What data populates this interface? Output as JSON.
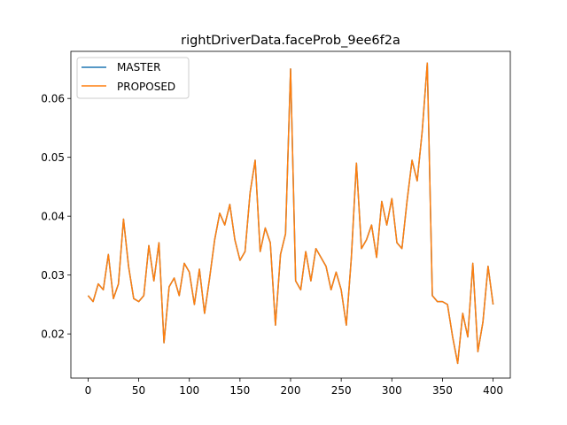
{
  "chart_data": {
    "type": "line",
    "title": "rightDriverData.faceProb_9ee6f2a",
    "xlabel": "",
    "ylabel": "",
    "xlim": [
      -17,
      417
    ],
    "ylim": [
      0.0125,
      0.068
    ],
    "x_ticks": [
      0,
      50,
      100,
      150,
      200,
      250,
      300,
      350,
      400
    ],
    "y_ticks": [
      0.02,
      0.03,
      0.04,
      0.05,
      0.06
    ],
    "x_tick_labels": [
      "0",
      "50",
      "100",
      "150",
      "200",
      "250",
      "300",
      "350",
      "400"
    ],
    "y_tick_labels": [
      "0.02",
      "0.03",
      "0.04",
      "0.05",
      "0.06"
    ],
    "grid": false,
    "legend": {
      "position": "upper left",
      "entries": [
        "MASTER",
        "PROPOSED"
      ]
    },
    "x": [
      0,
      5,
      10,
      15,
      20,
      25,
      30,
      35,
      40,
      45,
      50,
      55,
      60,
      65,
      70,
      75,
      80,
      85,
      90,
      95,
      100,
      105,
      110,
      115,
      120,
      125,
      130,
      135,
      140,
      145,
      150,
      155,
      160,
      165,
      170,
      175,
      180,
      185,
      190,
      195,
      200,
      205,
      210,
      215,
      220,
      225,
      230,
      235,
      240,
      245,
      250,
      255,
      260,
      265,
      270,
      275,
      280,
      285,
      290,
      295,
      300,
      305,
      310,
      315,
      320,
      325,
      330,
      335,
      340,
      345,
      350,
      355,
      360,
      365,
      370,
      375,
      380,
      385,
      390,
      395,
      400
    ],
    "series": [
      {
        "name": "MASTER",
        "color": "#1f77b4",
        "values": [
          0.0265,
          0.0255,
          0.0285,
          0.0275,
          0.0335,
          0.026,
          0.0285,
          0.0395,
          0.0315,
          0.026,
          0.0255,
          0.0265,
          0.035,
          0.029,
          0.0355,
          0.0185,
          0.028,
          0.0295,
          0.0265,
          0.032,
          0.0305,
          0.025,
          0.031,
          0.0235,
          0.0295,
          0.036,
          0.0405,
          0.0385,
          0.042,
          0.036,
          0.0325,
          0.034,
          0.044,
          0.0495,
          0.034,
          0.038,
          0.0355,
          0.0215,
          0.0335,
          0.037,
          0.065,
          0.029,
          0.0275,
          0.034,
          0.029,
          0.0345,
          0.033,
          0.0315,
          0.0275,
          0.0305,
          0.0275,
          0.0215,
          0.033,
          0.049,
          0.0345,
          0.036,
          0.0385,
          0.033,
          0.0425,
          0.0385,
          0.043,
          0.0355,
          0.0345,
          0.0425,
          0.0495,
          0.046,
          0.0545,
          0.066,
          0.0265,
          0.0255,
          0.0255,
          0.025,
          0.0195,
          0.015,
          0.0235,
          0.0195,
          0.032,
          0.017,
          0.022,
          0.0315,
          0.025
        ]
      },
      {
        "name": "PROPOSED",
        "color": "#ff7f0e",
        "values": [
          0.0265,
          0.0255,
          0.0285,
          0.0275,
          0.0335,
          0.026,
          0.0285,
          0.0395,
          0.0315,
          0.026,
          0.0255,
          0.0265,
          0.035,
          0.029,
          0.0355,
          0.0185,
          0.028,
          0.0295,
          0.0265,
          0.032,
          0.0305,
          0.025,
          0.031,
          0.0235,
          0.0295,
          0.036,
          0.0405,
          0.0385,
          0.042,
          0.036,
          0.0325,
          0.034,
          0.044,
          0.0495,
          0.034,
          0.038,
          0.0355,
          0.0215,
          0.0335,
          0.037,
          0.065,
          0.029,
          0.0275,
          0.034,
          0.029,
          0.0345,
          0.033,
          0.0315,
          0.0275,
          0.0305,
          0.0275,
          0.0215,
          0.033,
          0.049,
          0.0345,
          0.036,
          0.0385,
          0.033,
          0.0425,
          0.0385,
          0.043,
          0.0355,
          0.0345,
          0.0425,
          0.0495,
          0.046,
          0.0545,
          0.066,
          0.0265,
          0.0255,
          0.0255,
          0.025,
          0.0195,
          0.015,
          0.0235,
          0.0195,
          0.032,
          0.017,
          0.022,
          0.0315,
          0.025
        ]
      }
    ]
  }
}
